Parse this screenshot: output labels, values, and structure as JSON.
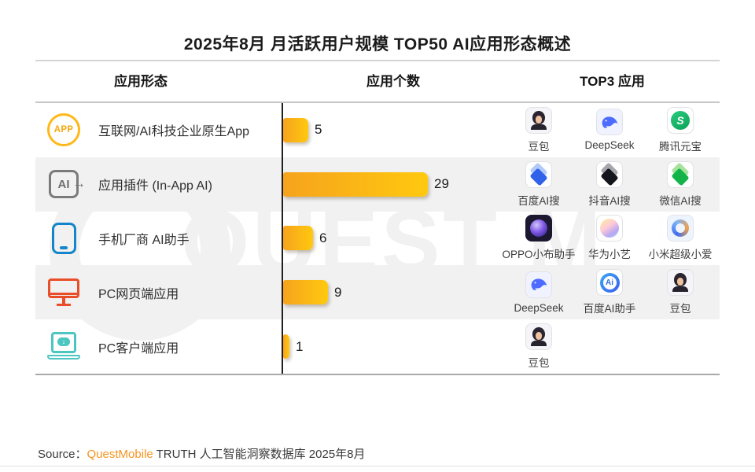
{
  "title": "2025年8月 月活跃用户规模 TOP50 AI应用形态概述",
  "columns": {
    "form": "应用形态",
    "count": "应用个数",
    "top3": "TOP3 应用"
  },
  "watermark": "QUEST MOBILE",
  "icon_glyphs": {
    "app_badge": "APP",
    "ai_badge": "AI",
    "ai_arrow": "→",
    "download_arrow": "↓",
    "yuanbao_s": "S",
    "baidu_ai": "Ai"
  },
  "chart_data": {
    "type": "bar",
    "orientation": "horizontal",
    "title": "2025年8月 月活跃用户规模 TOP50 AI应用形态概述",
    "categories": [
      "互联网/AI科技企业原生App",
      "应用插件 (In-App AI)",
      "手机厂商 AI助手",
      "PC网页端应用",
      "PC客户端应用"
    ],
    "values": [
      5,
      29,
      6,
      9,
      1
    ],
    "xlabel": "应用个数",
    "xlim": [
      0,
      45
    ],
    "grid": false,
    "bar_gradient": [
      "#f6a31d",
      "#ffc90f"
    ]
  },
  "rows": [
    {
      "label": "互联网/AI科技企业原生App",
      "count": "5",
      "top3": [
        {
          "name": "豆包"
        },
        {
          "name": "DeepSeek"
        },
        {
          "name": "腾讯元宝"
        }
      ]
    },
    {
      "label": "应用插件 (In-App AI)",
      "count": "29",
      "top3": [
        {
          "name": "百度AI搜"
        },
        {
          "name": "抖音AI搜"
        },
        {
          "name": "微信AI搜"
        }
      ]
    },
    {
      "label": "手机厂商 AI助手",
      "count": "6",
      "top3": [
        {
          "name": "OPPO小布助手"
        },
        {
          "name": "华为小艺"
        },
        {
          "name": "小米超级小爱"
        }
      ]
    },
    {
      "label": "PC网页端应用",
      "count": "9",
      "top3": [
        {
          "name": "DeepSeek"
        },
        {
          "name": "百度AI助手"
        },
        {
          "name": "豆包"
        }
      ]
    },
    {
      "label": "PC客户端应用",
      "count": "1",
      "top3": [
        {
          "name": "豆包"
        }
      ]
    }
  ],
  "source": {
    "prefix": "Source：",
    "brand": "QuestMobile",
    "rest": " TRUTH 人工智能洞察数据库 2025年8月"
  },
  "colors": {
    "accent_orange": "#f7941e",
    "row_stripe": "#f1f1f2",
    "axis": "#1f1f1f",
    "icon_app": "#ffb81a",
    "icon_inapp": "#7b7b7b",
    "icon_phone": "#1585cb",
    "icon_monitor": "#e84e28",
    "icon_laptop": "#4cc6c0"
  }
}
